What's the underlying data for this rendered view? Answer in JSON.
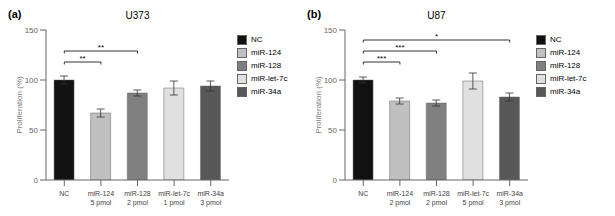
{
  "chart_data": [
    {
      "type": "bar",
      "panel_label": "(a)",
      "title": "U373",
      "categories": [
        "NC",
        "miR-124\n5 pmol",
        "miR-128\n2 pmol",
        "miR-let-7c\n1 pmol",
        "miR-34a\n3 pmol"
      ],
      "values": [
        100,
        67,
        87,
        92,
        94
      ],
      "errors": [
        4,
        4,
        3,
        7,
        5
      ],
      "colors": [
        "#111111",
        "#c0c0c0",
        "#808080",
        "#e0e0e0",
        "#585858"
      ],
      "ylabel": "Proliferation (%)",
      "ylim": [
        0,
        150
      ],
      "yticks": [
        0,
        50,
        100,
        150
      ],
      "grid": false,
      "legend": "right",
      "legend_labels": [
        "NC",
        "miR-124",
        "miR-128",
        "miR-let-7c",
        "miR-34a"
      ],
      "annotations": [
        {
          "x1": 0,
          "x2": 1,
          "y": 118,
          "label": "**"
        },
        {
          "x1": 0,
          "x2": 2,
          "y": 129,
          "label": "**"
        }
      ]
    },
    {
      "type": "bar",
      "panel_label": "(b)",
      "title": "U87",
      "categories": [
        "NC",
        "miR-124\n2 pmol",
        "miR-128\n2 pmol",
        "miR-let-7c\n5 pmol",
        "miR-34a\n3 pmol"
      ],
      "values": [
        100,
        79,
        77,
        99,
        83
      ],
      "errors": [
        3,
        3,
        3,
        8,
        4
      ],
      "colors": [
        "#111111",
        "#c0c0c0",
        "#808080",
        "#e0e0e0",
        "#585858"
      ],
      "ylabel": "Proliferation (%)",
      "ylim": [
        0,
        150
      ],
      "yticks": [
        0,
        50,
        100,
        150
      ],
      "grid": false,
      "legend": "right",
      "legend_labels": [
        "NC",
        "miR-124",
        "miR-128",
        "miR-let-7c",
        "miR-34a"
      ],
      "annotations": [
        {
          "x1": 0,
          "x2": 1,
          "y": 118,
          "label": "***"
        },
        {
          "x1": 0,
          "x2": 2,
          "y": 129,
          "label": "***"
        },
        {
          "x1": 0,
          "x2": 4,
          "y": 140,
          "label": "*"
        }
      ]
    }
  ]
}
